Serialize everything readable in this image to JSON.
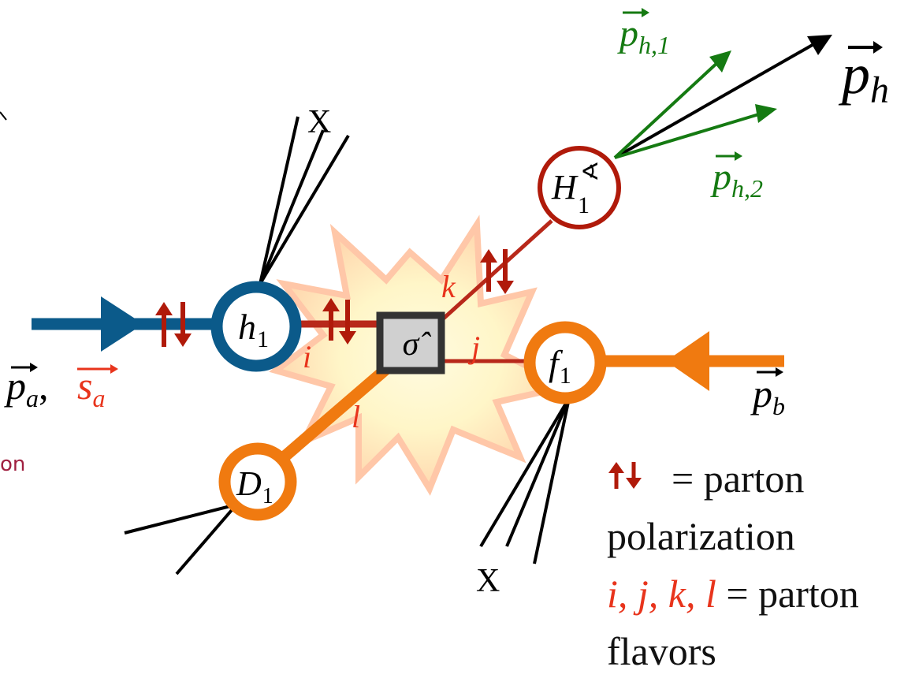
{
  "vectors": {
    "p_a": "p",
    "p_a_sub": "a",
    "s_a": "s",
    "s_a_sub": "a",
    "p_b": "p",
    "p_b_sub": "b",
    "p_h": "p",
    "p_h_sub": "h",
    "p_h1": "p",
    "p_h1_sub": "h,1",
    "p_h2": "p",
    "p_h2_sub": "h,2"
  },
  "nodes": {
    "h1": "h",
    "h1_sub": "1",
    "f1": "f",
    "f1_sub": "1",
    "D1": "D",
    "D1_sub": "1",
    "H1": "H",
    "H1_sub": "1",
    "H1_sup": "∢",
    "sigma": "σ̂"
  },
  "partons": {
    "i": "i",
    "j": "j",
    "k": "k",
    "l": "l"
  },
  "jets": {
    "x_top": "X",
    "x_bottom": "X"
  },
  "comma": ",",
  "partial_left_text": "on",
  "legend": {
    "polarization_symbol": "↑↓",
    "polarization_line1": "= parton",
    "polarization_line2": "polarization",
    "flavors_symbols": "i, j, k, l",
    "flavors_line1": "= parton",
    "flavors_line2": "flavors"
  },
  "colors": {
    "blue": "#0b5a8a",
    "orange": "#f07a10",
    "dark_red": "#b01a0a",
    "red_text": "#e8341c",
    "green": "#157a12",
    "black": "#000000",
    "maroon": "#a02040"
  }
}
